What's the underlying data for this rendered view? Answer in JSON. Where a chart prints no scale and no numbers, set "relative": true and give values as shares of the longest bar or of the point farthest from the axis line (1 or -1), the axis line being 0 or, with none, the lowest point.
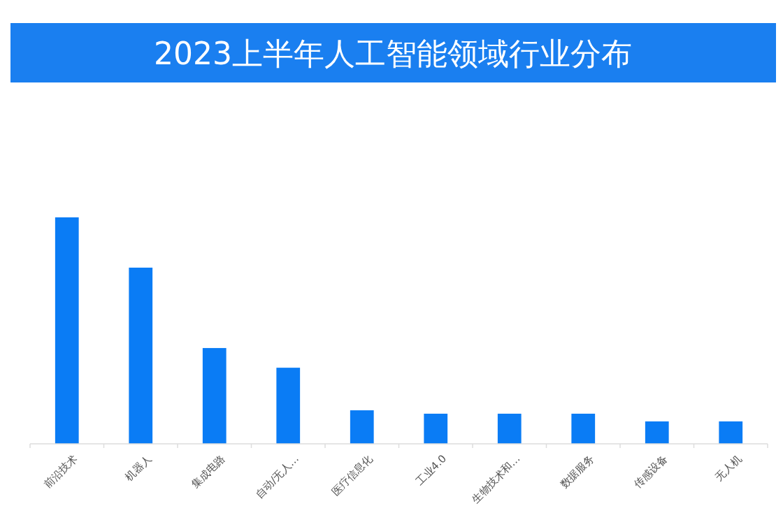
{
  "chart_data": {
    "type": "bar",
    "title": "2023上半年人工智能领域行业分布",
    "relative": true,
    "categories": [
      "前沿技术",
      "机器人",
      "集成电路",
      "自动/无人…",
      "医疗信息化",
      "工业4.0",
      "生物技术和…",
      "数据服务",
      "传感设备",
      "无人机"
    ],
    "values": [
      1,
      0.778,
      0.423,
      0.336,
      0.148,
      0.133,
      0.133,
      0.133,
      0.099,
      0.099
    ],
    "color": "#0a7cf5",
    "grid": false
  }
}
